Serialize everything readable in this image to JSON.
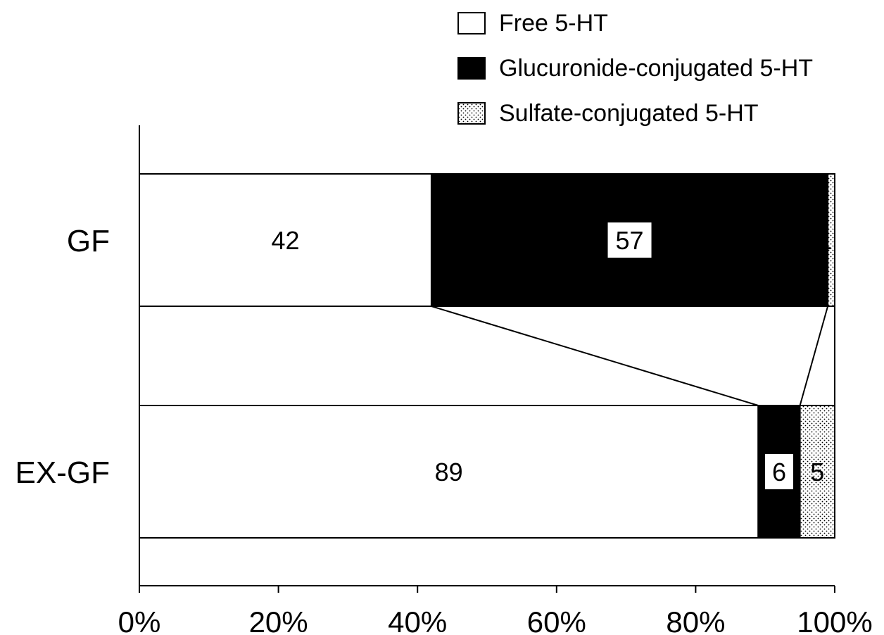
{
  "chart_data": {
    "type": "bar",
    "orientation": "horizontal",
    "stacked": true,
    "categories": [
      "GF",
      "EX-GF"
    ],
    "series": [
      {
        "name": "Free 5-HT",
        "values": [
          42,
          89
        ],
        "fill": "white"
      },
      {
        "name": "Glucuronide-conjugated 5-HT",
        "values": [
          57,
          6
        ],
        "fill": "black"
      },
      {
        "name": "Sulfate-conjugated 5-HT",
        "values": [
          1,
          5
        ],
        "fill": "dotted"
      }
    ],
    "x_ticks": [
      "0%",
      "20%",
      "40%",
      "60%",
      "80%",
      "100%"
    ],
    "xlim": [
      0,
      100
    ],
    "legend_position": "top-right",
    "grid": false,
    "colors": {
      "black": "#000000",
      "white": "#ffffff"
    }
  }
}
